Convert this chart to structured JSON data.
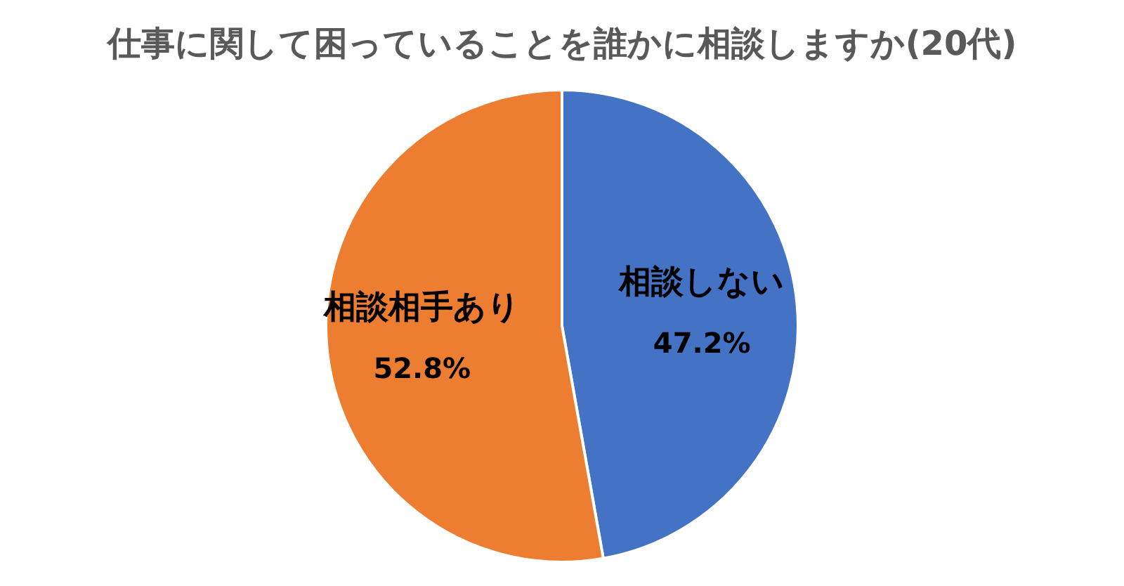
{
  "chart_data": {
    "type": "pie",
    "title": "仕事に関して困っていることを誰かに相談しますか(20代)",
    "categories": [
      "相談しない",
      "相談相手あり"
    ],
    "values": [
      47.2,
      52.8
    ],
    "colors": [
      "#4472c4",
      "#ed7d31"
    ],
    "value_labels": [
      "47.2%",
      "52.8%"
    ]
  }
}
